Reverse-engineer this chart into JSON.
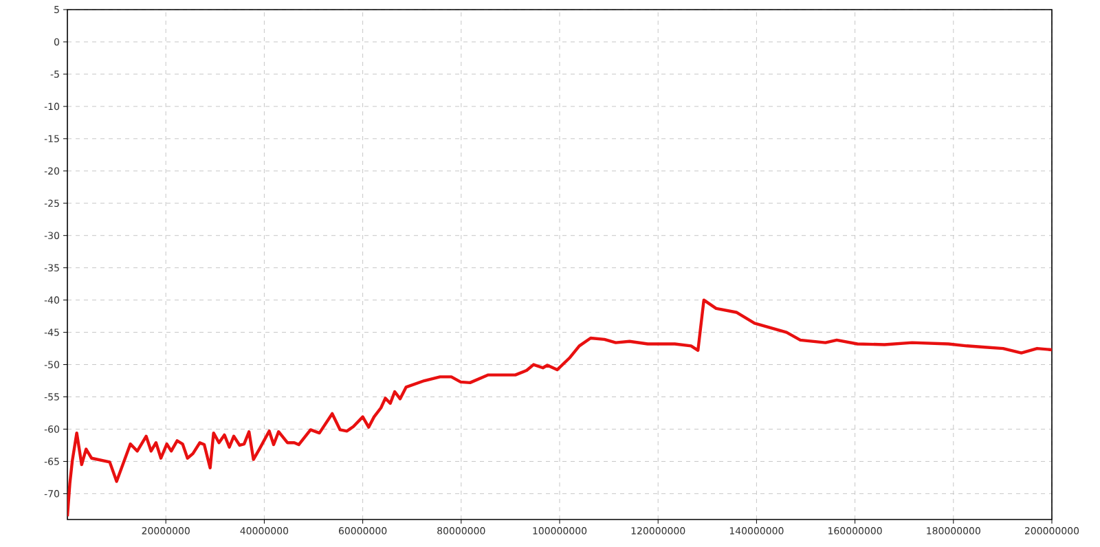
{
  "chart_data": {
    "type": "line",
    "x": [
      0,
      500000,
      1000000,
      1900000,
      2900000,
      3800000,
      4900000,
      8600000,
      10000000,
      12800000,
      14200000,
      16000000,
      17000000,
      18000000,
      19000000,
      20200000,
      21100000,
      22300000,
      23400000,
      24400000,
      25500000,
      26900000,
      27800000,
      29000000,
      29700000,
      30800000,
      31900000,
      32900000,
      33800000,
      35000000,
      35900000,
      36900000,
      37800000,
      39000000,
      41000000,
      41900000,
      42900000,
      44700000,
      46100000,
      47000000,
      49400000,
      51200000,
      53800000,
      55400000,
      56800000,
      58100000,
      60000000,
      61200000,
      62300000,
      63700000,
      64600000,
      65600000,
      66500000,
      67600000,
      68800000,
      72500000,
      75700000,
      78000000,
      79900000,
      81800000,
      85500000,
      91000000,
      93300000,
      94700000,
      96600000,
      97500000,
      99500000,
      102100000,
      104000000,
      106300000,
      109100000,
      111400000,
      114200000,
      117900000,
      123400000,
      126700000,
      128100000,
      129300000,
      131800000,
      135900000,
      139600000,
      146100000,
      148900000,
      154000000,
      156300000,
      160500000,
      166000000,
      171600000,
      179000000,
      182700000,
      186400000,
      190100000,
      193800000,
      197000000,
      200000000
    ],
    "values": [
      -73.5,
      -68.4,
      -64.9,
      -60.6,
      -65.5,
      -63.1,
      -64.5,
      -65.1,
      -68.1,
      -62.3,
      -63.4,
      -61.1,
      -63.4,
      -62.1,
      -64.5,
      -62.3,
      -63.4,
      -61.8,
      -62.3,
      -64.5,
      -63.8,
      -62.1,
      -62.4,
      -66,
      -60.6,
      -62.1,
      -60.9,
      -62.8,
      -61.1,
      -62.5,
      -62.3,
      -60.4,
      -64.7,
      -63.1,
      -60.3,
      -62.4,
      -60.4,
      -62.1,
      -62.1,
      -62.4,
      -60.1,
      -60.6,
      -57.6,
      -60.1,
      -60.3,
      -59.6,
      -58.1,
      -59.7,
      -58.1,
      -56.7,
      -55.2,
      -56,
      -54.2,
      -55.3,
      -53.5,
      -52.5,
      -51.9,
      -51.9,
      -52.7,
      -52.8,
      -51.6,
      -51.6,
      -50.9,
      -50,
      -50.5,
      -50.1,
      -50.8,
      -48.9,
      -47.1,
      -45.9,
      -46.1,
      -46.6,
      -46.4,
      -46.8,
      -46.8,
      -47.1,
      -47.8,
      -40,
      -41.3,
      -41.9,
      -43.6,
      -45,
      -46.2,
      -46.6,
      -46.2,
      -46.8,
      -46.9,
      -46.6,
      -46.8,
      -47.1,
      -47.3,
      -47.5,
      -48.2,
      -47.5,
      -47.7
    ],
    "color": "#e81010",
    "line_style": "solid",
    "xlim": [
      0,
      200000000
    ],
    "ylim": [
      -74,
      5
    ],
    "xticks": [
      20000000,
      40000000,
      60000000,
      80000000,
      100000000,
      120000000,
      140000000,
      160000000,
      180000000,
      200000000
    ],
    "yticks": [
      5,
      0,
      -5,
      -10,
      -15,
      -20,
      -25,
      -30,
      -35,
      -40,
      -45,
      -50,
      -55,
      -60,
      -65,
      -70
    ],
    "grid": true
  }
}
